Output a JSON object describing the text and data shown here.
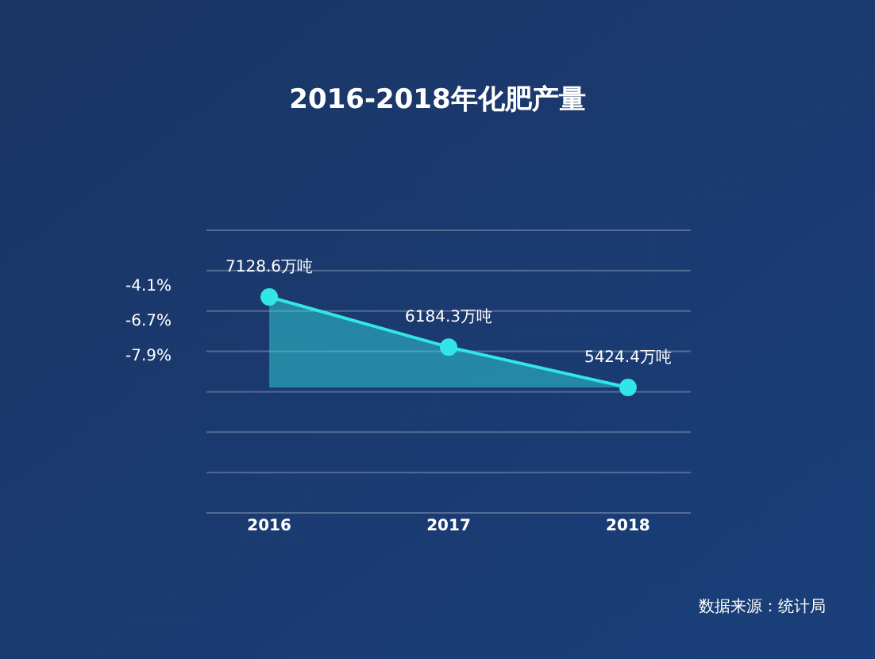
{
  "chart_data": {
    "type": "area",
    "title": "2016-2018年化肥产量",
    "categories": [
      "2016",
      "2017",
      "2018"
    ],
    "series": [
      {
        "color": "#33e6e6",
        "values": [
          7128.6,
          6184.3,
          5424.4
        ],
        "value_labels": [
          "7128.6万吨",
          "6184.3万吨",
          "5424.4万吨"
        ]
      }
    ],
    "data_labels": true,
    "marker": "circle",
    "grid": "y",
    "annotations": [
      "-4.1%",
      "-6.7%",
      "-7.9%",
      "数据来源：统计局"
    ]
  }
}
